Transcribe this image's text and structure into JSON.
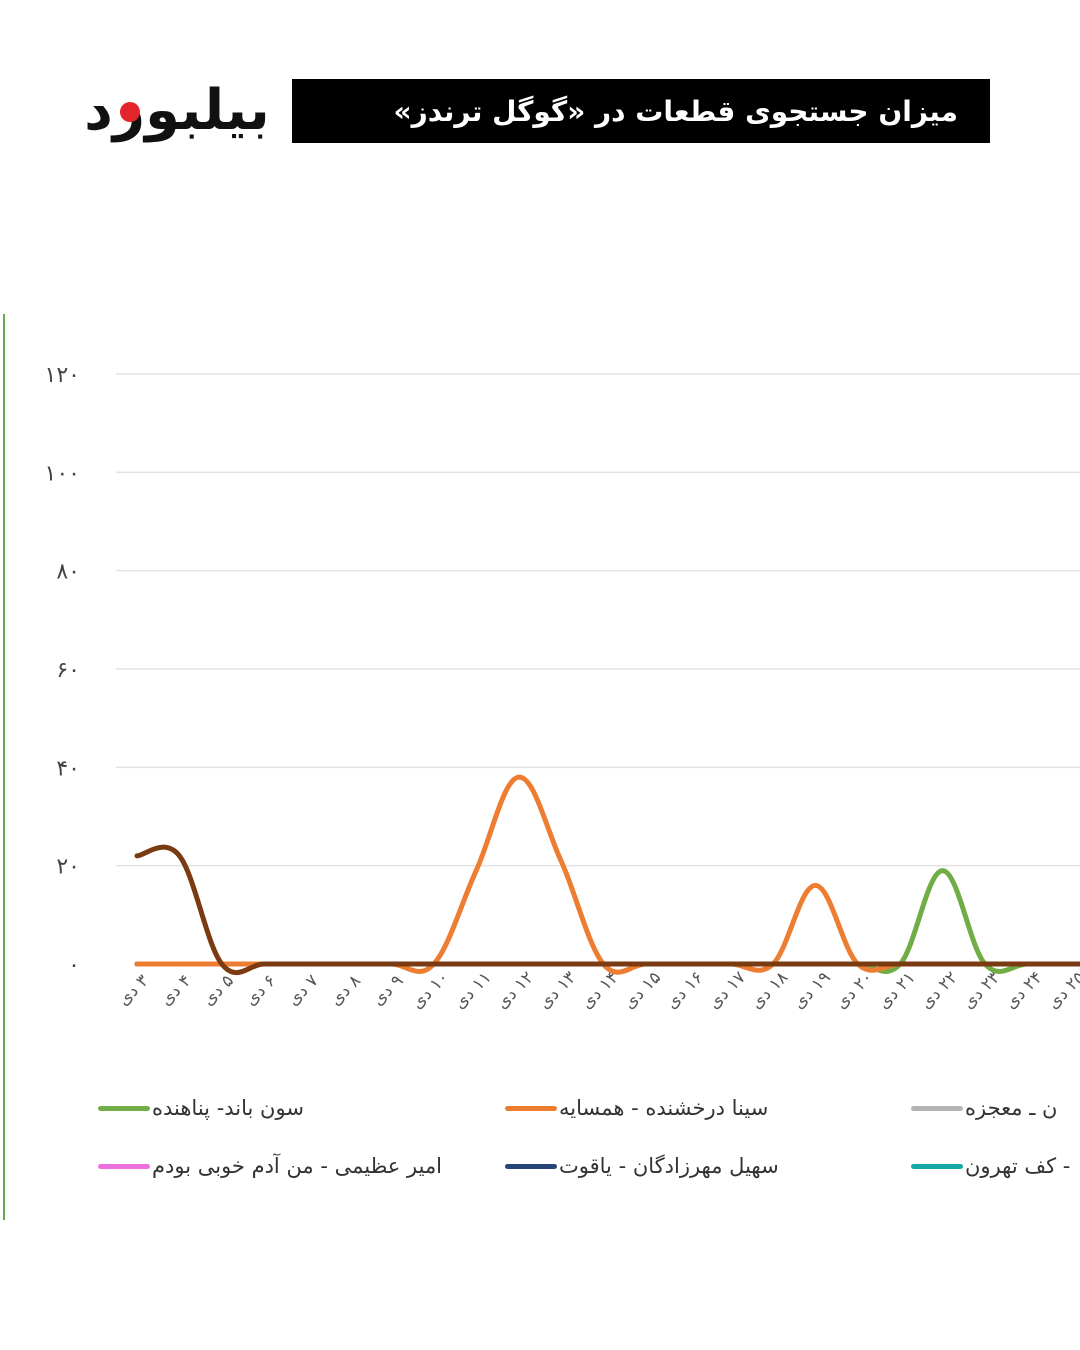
{
  "header": {
    "logo_text": "بیلبورد",
    "title": "میزان جستجوی قطعات در «گوگل ترندز»"
  },
  "colors": {
    "logo_dot": "#e3242b",
    "title_bg": "#000000",
    "frame_line": "#6aa84f"
  },
  "chart_data": {
    "type": "line",
    "y_ticks": [
      "۰",
      "۲۰",
      "۴۰",
      "۶۰",
      "۸۰",
      "۱۰۰",
      "۱۲۰"
    ],
    "ylim": [
      0,
      120
    ],
    "grid": true,
    "categories": [
      "۳ دی",
      "۴ دی",
      "۵ دی",
      "۶ دی",
      "۷ دی",
      "۸ دی",
      "۹ دی",
      "۱۰ دی",
      "۱۱ دی",
      "۱۲ دی",
      "۱۳ دی",
      "۱۴ دی",
      "۱۵ دی",
      "۱۶ دی",
      "۱۷ دی",
      "۱۸ دی",
      "۱۹ دی",
      "۲۰ دی",
      "۲۱ دی",
      "۲۲ دی",
      "۲۳ دی",
      "۲۴ دی",
      "۲۵ دی"
    ],
    "series": [
      {
        "name": "سون باند- پناهنده",
        "color": "#70ad47",
        "values": [
          0,
          0,
          0,
          0,
          0,
          0,
          0,
          0,
          0,
          0,
          0,
          0,
          0,
          0,
          0,
          0,
          0,
          0,
          0,
          19,
          0,
          0,
          0
        ]
      },
      {
        "name": "سینا درخشنده - همسایه",
        "color": "#ed7d31",
        "values": [
          0,
          0,
          0,
          0,
          0,
          0,
          0,
          0,
          19,
          38,
          21,
          0,
          0,
          0,
          0,
          0,
          16,
          0,
          0,
          0,
          0,
          0,
          0
        ]
      },
      {
        "name": "ن ـ معجزه",
        "color": "#b4b4b4",
        "values": [
          0,
          0,
          0,
          0,
          0,
          0,
          0,
          0,
          0,
          0,
          0,
          0,
          0,
          0,
          0,
          0,
          0,
          0,
          0,
          0,
          0,
          0,
          0
        ]
      },
      {
        "name": "امیر عظیمی - من آدم خوبی بودم",
        "color": "#ee6fe0",
        "values": [
          0,
          0,
          0,
          0,
          0,
          0,
          0,
          0,
          0,
          0,
          0,
          0,
          0,
          0,
          0,
          0,
          0,
          0,
          0,
          0,
          0,
          0,
          0
        ]
      },
      {
        "name": "سهیل مهرزادگان - یاقوت",
        "color": "#264478",
        "values": [
          0,
          0,
          0,
          0,
          0,
          0,
          0,
          0,
          0,
          0,
          0,
          0,
          0,
          0,
          0,
          0,
          0,
          0,
          0,
          0,
          0,
          0,
          0
        ]
      },
      {
        "name": "- کف تهرون",
        "color": "#17a9a8",
        "values": [
          0,
          0,
          0,
          0,
          0,
          0,
          0,
          0,
          0,
          0,
          0,
          0,
          0,
          0,
          0,
          0,
          0,
          0,
          0,
          0,
          0,
          0,
          0
        ]
      },
      {
        "name": "",
        "color": "#d6304f",
        "values": [
          0,
          0,
          0,
          0,
          0,
          0,
          0,
          0,
          0,
          0,
          0,
          0,
          0,
          0,
          0,
          0,
          0,
          0,
          0,
          0,
          0,
          0,
          0
        ]
      },
      {
        "name": "",
        "color": "#7a3a12",
        "values": [
          22,
          22,
          0,
          0,
          0,
          0,
          0,
          0,
          0,
          0,
          0,
          0,
          0,
          0,
          0,
          0,
          0,
          0,
          0,
          0,
          0,
          0,
          0
        ]
      }
    ],
    "legend_position": "bottom"
  }
}
